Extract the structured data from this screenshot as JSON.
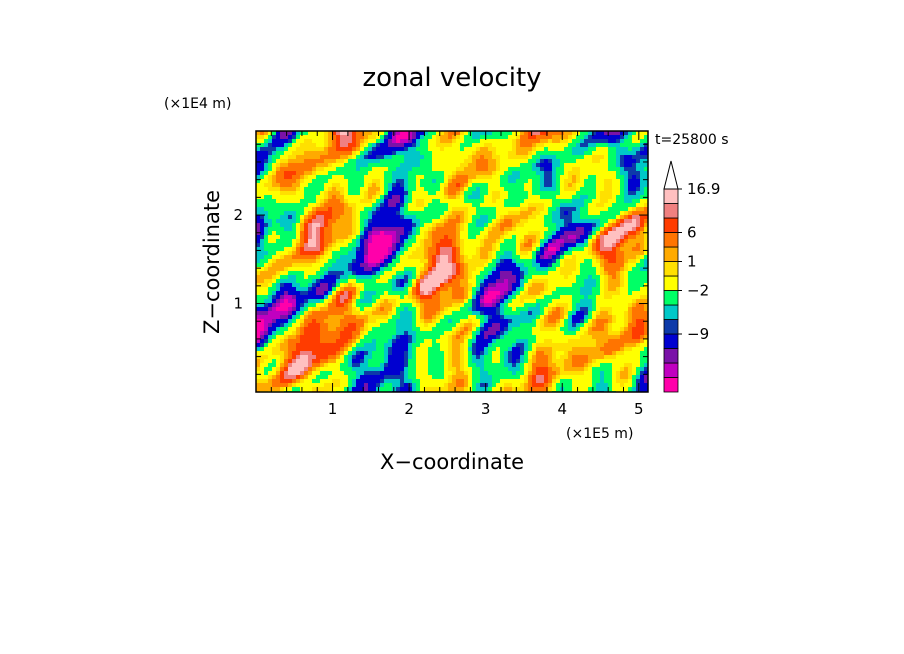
{
  "chart_data": {
    "type": "heatmap",
    "title": "zonal velocity",
    "xlabel": "X−coordinate",
    "ylabel": "Z−coordinate",
    "x_multiplier": "(×1E5 m)",
    "y_multiplier": "(×1E4 m)",
    "time_label": "t=25800 s",
    "xlim": [
      0,
      5.12
    ],
    "ylim": [
      0,
      2.95
    ],
    "x_ticks": [
      {
        "value": 1,
        "label": "1"
      },
      {
        "value": 2,
        "label": "2"
      },
      {
        "value": 3,
        "label": "3"
      },
      {
        "value": 4,
        "label": "4"
      },
      {
        "value": 5,
        "label": "5"
      }
    ],
    "y_ticks": [
      {
        "value": 1,
        "label": "1"
      },
      {
        "value": 2,
        "label": "2"
      }
    ],
    "colorbar": {
      "has_extend_arrow": true,
      "levels": [
        {
          "color": "#ff00aa"
        },
        {
          "color": "#c000c0"
        },
        {
          "color": "#7a12a8"
        },
        {
          "color": "#0000d0"
        },
        {
          "color": "#0d3aa9"
        },
        {
          "color": "#00c8c8"
        },
        {
          "color": "#00ff66"
        },
        {
          "color": "#ffff00"
        },
        {
          "color": "#ffe000"
        },
        {
          "color": "#ffaa00"
        },
        {
          "color": "#ff7400"
        },
        {
          "color": "#ff3c00"
        },
        {
          "color": "#f08080"
        },
        {
          "color": "#ffc0c0"
        }
      ],
      "labels": [
        {
          "level_index": 13,
          "text": "16.9"
        },
        {
          "level_index": 10,
          "text": "6"
        },
        {
          "level_index": 8,
          "text": "1"
        },
        {
          "level_index": 6,
          "text": "−2"
        },
        {
          "level_index": 3,
          "text": "−9"
        }
      ]
    }
  }
}
